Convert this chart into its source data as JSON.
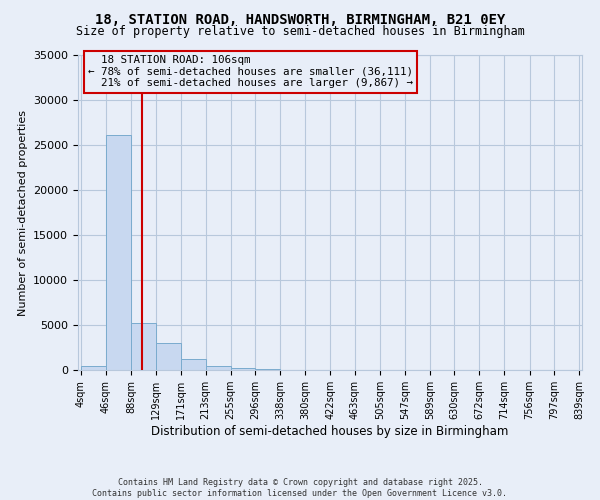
{
  "title": "18, STATION ROAD, HANDSWORTH, BIRMINGHAM, B21 0EY",
  "subtitle": "Size of property relative to semi-detached houses in Birmingham",
  "xlabel": "Distribution of semi-detached houses by size in Birmingham",
  "ylabel": "Number of semi-detached properties",
  "bin_edges": [
    4,
    46,
    88,
    129,
    171,
    213,
    255,
    296,
    338,
    380,
    422,
    463,
    505,
    547,
    589,
    630,
    672,
    714,
    756,
    797,
    839
  ],
  "bar_heights": [
    500,
    26100,
    5200,
    3000,
    1200,
    500,
    200,
    80,
    40,
    20,
    10,
    5,
    3,
    2,
    1,
    1,
    0,
    0,
    0,
    0
  ],
  "property_size": 106,
  "pct_smaller": 78,
  "n_smaller": 36111,
  "pct_larger": 21,
  "n_larger": 9867,
  "property_label": "18 STATION ROAD: 106sqm",
  "bar_color": "#c8d8f0",
  "bar_edge_color": "#7aabce",
  "vline_color": "#cc0000",
  "annotation_box_edge_color": "#cc0000",
  "background_color": "#e8eef8",
  "grid_color": "#b8c8dc",
  "ylim": [
    0,
    35000
  ],
  "yticks": [
    0,
    5000,
    10000,
    15000,
    20000,
    25000,
    30000,
    35000
  ],
  "footer_line1": "Contains HM Land Registry data © Crown copyright and database right 2025.",
  "footer_line2": "Contains public sector information licensed under the Open Government Licence v3.0."
}
